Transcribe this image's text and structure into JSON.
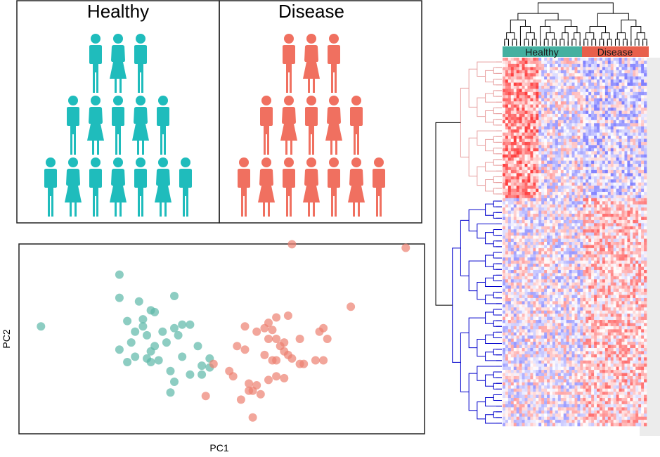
{
  "groups": {
    "healthy": {
      "title": "Healthy",
      "color": "#1fbcbc",
      "count": 15
    },
    "disease": {
      "title": "Disease",
      "color": "#f07060",
      "count": 15
    }
  },
  "pca": {
    "xlabel": "PC1",
    "ylabel": "PC2",
    "healthy_color": "#5cb8a8",
    "disease_color": "#ec8070"
  },
  "heatmap": {
    "column_bar": {
      "healthy_label": "Healthy",
      "disease_label": "Disease",
      "healthy_color": "#45b0a0",
      "disease_color": "#e8604c"
    },
    "upper_cluster_color": "#e8a0a0",
    "lower_cluster_color": "#0000cc"
  },
  "chart_data": {
    "type": "scatter",
    "xlabel": "PC1",
    "ylabel": "PC2",
    "xlim": [
      0,
      100
    ],
    "ylim": [
      0,
      100
    ],
    "grid": false,
    "series": [
      {
        "name": "Healthy",
        "points": [
          [
            4,
            57
          ],
          [
            24,
            86
          ],
          [
            24,
            73
          ],
          [
            29,
            71
          ],
          [
            38,
            74
          ],
          [
            26,
            60
          ],
          [
            30,
            61
          ],
          [
            30,
            57
          ],
          [
            32,
            66
          ],
          [
            33,
            65
          ],
          [
            28,
            54
          ],
          [
            24,
            44
          ],
          [
            27,
            48
          ],
          [
            31,
            52
          ],
          [
            33,
            46
          ],
          [
            35,
            54
          ],
          [
            32,
            43
          ],
          [
            36,
            48
          ],
          [
            38,
            56
          ],
          [
            39,
            52
          ],
          [
            40,
            58
          ],
          [
            42,
            58
          ],
          [
            40,
            40
          ],
          [
            44,
            46
          ],
          [
            26,
            37
          ],
          [
            28,
            40
          ],
          [
            31,
            39
          ],
          [
            32,
            37
          ],
          [
            34,
            38
          ],
          [
            37,
            32
          ],
          [
            38,
            26
          ],
          [
            37,
            20
          ],
          [
            45,
            35
          ],
          [
            47,
            39
          ],
          [
            47,
            34
          ],
          [
            45,
            30
          ],
          [
            42,
            30
          ]
        ]
      },
      {
        "name": "Disease",
        "points": [
          [
            68,
            103
          ],
          [
            97,
            101
          ],
          [
            83,
            68
          ],
          [
            64,
            62
          ],
          [
            67,
            63
          ],
          [
            62,
            59
          ],
          [
            56,
            57
          ],
          [
            59,
            54
          ],
          [
            61,
            56
          ],
          [
            63,
            55
          ],
          [
            54,
            46
          ],
          [
            56,
            44
          ],
          [
            62,
            50
          ],
          [
            64,
            50
          ],
          [
            66,
            48
          ],
          [
            70,
            50
          ],
          [
            61,
            41
          ],
          [
            63,
            38
          ],
          [
            64,
            38
          ],
          [
            65,
            46
          ],
          [
            66,
            43
          ],
          [
            67,
            41
          ],
          [
            68,
            39
          ],
          [
            70,
            36
          ],
          [
            71,
            36
          ],
          [
            75,
            54
          ],
          [
            76,
            56
          ],
          [
            77,
            50
          ],
          [
            74,
            38
          ],
          [
            76,
            38
          ],
          [
            52,
            32
          ],
          [
            53,
            29
          ],
          [
            48,
            36
          ],
          [
            58,
            21
          ],
          [
            59,
            24
          ],
          [
            57,
            21
          ],
          [
            60,
            19
          ],
          [
            55,
            16
          ],
          [
            46,
            18
          ],
          [
            58,
            6
          ],
          [
            66,
            28
          ],
          [
            64,
            29
          ],
          [
            62,
            27
          ],
          [
            57,
            25
          ]
        ]
      }
    ]
  }
}
